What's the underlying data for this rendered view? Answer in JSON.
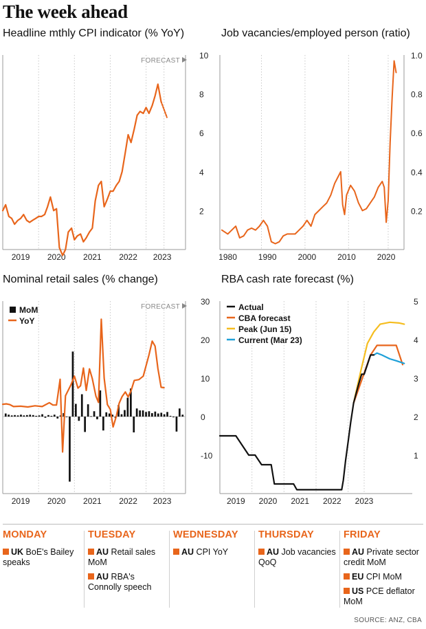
{
  "header": {
    "title": "The week ahead"
  },
  "colors": {
    "orange": "#e8651b",
    "black": "#111111",
    "yellow": "#f5bd1f",
    "blue": "#1fa0d8",
    "grid": "#c8c8c8"
  },
  "chart_data": [
    {
      "type": "line",
      "title": "Headline mthly CPI indicator (% YoY)",
      "annotation": "FORECAST",
      "x_ticks": [
        "2019",
        "2020",
        "2021",
        "2022",
        "2023"
      ],
      "y_ticks": [
        "2",
        "4",
        "6",
        "8",
        "10"
      ],
      "ylim": [
        0,
        10
      ],
      "xlim": [
        2018.5,
        2023.6
      ],
      "series": [
        {
          "points": [
            [
              2018.5,
              2.0
            ],
            [
              2018.58,
              2.3
            ],
            [
              2018.67,
              1.7
            ],
            [
              2018.75,
              1.6
            ],
            [
              2018.83,
              1.3
            ],
            [
              2018.92,
              1.5
            ],
            [
              2019.0,
              1.6
            ],
            [
              2019.08,
              1.8
            ],
            [
              2019.17,
              1.5
            ],
            [
              2019.25,
              1.4
            ],
            [
              2019.33,
              1.5
            ],
            [
              2019.42,
              1.6
            ],
            [
              2019.5,
              1.7
            ],
            [
              2019.58,
              1.7
            ],
            [
              2019.67,
              1.8
            ],
            [
              2019.75,
              2.2
            ],
            [
              2019.83,
              2.7
            ],
            [
              2019.92,
              2.0
            ],
            [
              2020.0,
              2.1
            ],
            [
              2020.08,
              0.1
            ],
            [
              2020.17,
              -0.3
            ],
            [
              2020.25,
              0.0
            ],
            [
              2020.33,
              0.9
            ],
            [
              2020.42,
              1.1
            ],
            [
              2020.5,
              0.5
            ],
            [
              2020.58,
              0.7
            ],
            [
              2020.67,
              0.8
            ],
            [
              2020.75,
              0.4
            ],
            [
              2020.83,
              0.6
            ],
            [
              2020.92,
              0.9
            ],
            [
              2021.0,
              1.1
            ],
            [
              2021.08,
              2.5
            ],
            [
              2021.17,
              3.3
            ],
            [
              2021.25,
              3.5
            ],
            [
              2021.33,
              2.2
            ],
            [
              2021.42,
              2.6
            ],
            [
              2021.5,
              3.0
            ],
            [
              2021.58,
              3.0
            ],
            [
              2021.67,
              3.3
            ],
            [
              2021.75,
              3.5
            ],
            [
              2021.83,
              4.0
            ],
            [
              2021.92,
              5.0
            ],
            [
              2022.0,
              5.9
            ],
            [
              2022.08,
              5.5
            ],
            [
              2022.17,
              6.2
            ],
            [
              2022.25,
              6.9
            ],
            [
              2022.33,
              7.1
            ],
            [
              2022.42,
              7.0
            ],
            [
              2022.5,
              7.3
            ],
            [
              2022.58,
              7.0
            ],
            [
              2022.67,
              7.4
            ],
            [
              2022.75,
              7.9
            ],
            [
              2022.83,
              8.5
            ],
            [
              2022.92,
              7.6
            ]
          ]
        },
        {
          "style": "dashed",
          "points": [
            [
              2022.92,
              7.6
            ],
            [
              2023.0,
              7.2
            ],
            [
              2023.08,
              6.8
            ]
          ]
        }
      ]
    },
    {
      "type": "line",
      "title": "Job vacancies/employed person (ratio)",
      "x_ticks": [
        "1980",
        "1990",
        "2000",
        "2010",
        "2020"
      ],
      "y_ticks": [
        "0.2",
        "0.4",
        "0.6",
        "0.8",
        "1.0"
      ],
      "ylim": [
        0,
        1.0
      ],
      "xlim": [
        1978,
        2024
      ],
      "series": [
        {
          "points": [
            [
              1978.5,
              0.1
            ],
            [
              1980,
              0.08
            ],
            [
              1981,
              0.1
            ],
            [
              1982,
              0.12
            ],
            [
              1983,
              0.06
            ],
            [
              1984,
              0.07
            ],
            [
              1985,
              0.1
            ],
            [
              1986,
              0.11
            ],
            [
              1987,
              0.1
            ],
            [
              1988,
              0.12
            ],
            [
              1989,
              0.15
            ],
            [
              1990,
              0.12
            ],
            [
              1991,
              0.04
            ],
            [
              1992,
              0.03
            ],
            [
              1993,
              0.04
            ],
            [
              1994,
              0.07
            ],
            [
              1995,
              0.08
            ],
            [
              1996,
              0.08
            ],
            [
              1997,
              0.08
            ],
            [
              1998,
              0.1
            ],
            [
              1999,
              0.12
            ],
            [
              2000,
              0.15
            ],
            [
              2001,
              0.12
            ],
            [
              2002,
              0.18
            ],
            [
              2003,
              0.2
            ],
            [
              2004,
              0.22
            ],
            [
              2005,
              0.24
            ],
            [
              2006,
              0.28
            ],
            [
              2007,
              0.34
            ],
            [
              2008,
              0.38
            ],
            [
              2008.5,
              0.4
            ],
            [
              2009,
              0.23
            ],
            [
              2009.5,
              0.18
            ],
            [
              2010,
              0.28
            ],
            [
              2011,
              0.33
            ],
            [
              2012,
              0.3
            ],
            [
              2013,
              0.24
            ],
            [
              2014,
              0.2
            ],
            [
              2015,
              0.21
            ],
            [
              2016,
              0.24
            ],
            [
              2017,
              0.27
            ],
            [
              2018,
              0.32
            ],
            [
              2019,
              0.35
            ],
            [
              2019.5,
              0.32
            ],
            [
              2020,
              0.14
            ],
            [
              2020.5,
              0.25
            ],
            [
              2021,
              0.55
            ],
            [
              2021.5,
              0.78
            ],
            [
              2022,
              0.97
            ],
            [
              2022.5,
              0.91
            ]
          ]
        }
      ]
    },
    {
      "type": "bar+line",
      "title": "Nominal retail sales (% change)",
      "annotation": "FORECAST",
      "x_ticks": [
        "2019",
        "2020",
        "2021",
        "2022",
        "2023"
      ],
      "y_ticks": [
        "-10",
        "0",
        "10",
        "20",
        "30"
      ],
      "ylim": [
        -20,
        30
      ],
      "legend": [
        "MoM",
        "YoY"
      ],
      "series": [
        {
          "name": "MoM",
          "kind": "bar",
          "values": [
            0.8,
            0.5,
            0.3,
            0.4,
            0.3,
            0.5,
            0.3,
            0.4,
            0.5,
            0.4,
            0.2,
            0.3,
            0.6,
            -0.3,
            0.4,
            0.2,
            0.5,
            -0.5,
            0.3,
            0.9,
            -0.1,
            -16.9,
            16.9,
            3.3,
            -1.1,
            5.8,
            -4.0,
            3.2,
            0.1,
            1.4,
            -0.7,
            6.8,
            -3.6,
            1.1,
            0.8,
            0.5,
            -0.4,
            3.0,
            0.6,
            1.7,
            4.9,
            7.3,
            -4.1,
            2.1,
            1.6,
            1.6,
            1.2,
            1.4,
            0.9,
            1.3,
            0.8,
            1.0,
            0.6,
            1.2,
            0.2,
            -0.2,
            -3.9,
            2.1,
            0.5
          ]
        },
        {
          "name": "YoY",
          "kind": "line",
          "points": [
            [
              2018.5,
              3.2
            ],
            [
              2018.6,
              3.3
            ],
            [
              2018.7,
              3.1
            ],
            [
              2018.8,
              2.6
            ],
            [
              2019.0,
              2.7
            ],
            [
              2019.2,
              2.5
            ],
            [
              2019.4,
              2.8
            ],
            [
              2019.6,
              2.6
            ],
            [
              2019.8,
              3.6
            ],
            [
              2019.9,
              3.0
            ],
            [
              2020.0,
              3.0
            ],
            [
              2020.1,
              9.7
            ],
            [
              2020.17,
              -9.2
            ],
            [
              2020.25,
              5.4
            ],
            [
              2020.4,
              8.2
            ],
            [
              2020.5,
              10.5
            ],
            [
              2020.6,
              7.4
            ],
            [
              2020.67,
              8.0
            ],
            [
              2020.75,
              12.6
            ],
            [
              2020.83,
              6.8
            ],
            [
              2020.92,
              12.4
            ],
            [
              2021.0,
              9.8
            ],
            [
              2021.1,
              5.3
            ],
            [
              2021.17,
              3.7
            ],
            [
              2021.25,
              25.3
            ],
            [
              2021.33,
              10.0
            ],
            [
              2021.42,
              3.1
            ],
            [
              2021.5,
              1.9
            ],
            [
              2021.58,
              -2.7
            ],
            [
              2021.67,
              0.1
            ],
            [
              2021.75,
              3.5
            ],
            [
              2021.83,
              5.2
            ],
            [
              2021.92,
              6.4
            ],
            [
              2022.0,
              5.1
            ],
            [
              2022.08,
              6.7
            ],
            [
              2022.17,
              9.4
            ],
            [
              2022.3,
              9.6
            ],
            [
              2022.42,
              10.5
            ],
            [
              2022.58,
              16.0
            ],
            [
              2022.67,
              19.6
            ],
            [
              2022.75,
              18.3
            ],
            [
              2022.83,
              12.5
            ],
            [
              2022.92,
              7.6
            ],
            [
              2023.0,
              7.5
            ]
          ]
        }
      ]
    },
    {
      "type": "line",
      "title": "RBA cash rate forecast (%)",
      "x_ticks": [
        "2019",
        "2020",
        "2021",
        "2022",
        "2023"
      ],
      "y_ticks": [
        "1",
        "2",
        "3",
        "4",
        "5"
      ],
      "ylim": [
        0,
        5
      ],
      "legend": [
        "Actual",
        "CBA forecast",
        "Peak (Jun 15)",
        "Current (Mar 23)"
      ],
      "series": [
        {
          "name": "Actual",
          "points": [
            [
              2018.5,
              1.5
            ],
            [
              2019.0,
              1.5
            ],
            [
              2019.4,
              1.0
            ],
            [
              2019.6,
              1.0
            ],
            [
              2019.8,
              0.75
            ],
            [
              2020.1,
              0.75
            ],
            [
              2020.2,
              0.25
            ],
            [
              2020.8,
              0.25
            ],
            [
              2020.9,
              0.1
            ],
            [
              2022.3,
              0.1
            ],
            [
              2022.35,
              0.35
            ],
            [
              2022.42,
              0.85
            ],
            [
              2022.5,
              1.35
            ],
            [
              2022.58,
              1.85
            ],
            [
              2022.67,
              2.35
            ],
            [
              2022.75,
              2.6
            ],
            [
              2022.83,
              2.85
            ],
            [
              2022.92,
              3.1
            ],
            [
              2023.0,
              3.1
            ],
            [
              2023.1,
              3.35
            ],
            [
              2023.2,
              3.6
            ],
            [
              2023.3,
              3.6
            ]
          ]
        },
        {
          "name": "CBA forecast",
          "points": [
            [
              2022.67,
              2.35
            ],
            [
              2023.2,
              3.6
            ],
            [
              2023.4,
              3.85
            ],
            [
              2023.6,
              3.85
            ],
            [
              2024.0,
              3.85
            ],
            [
              2024.2,
              3.35
            ]
          ]
        },
        {
          "name": "Peak (Jun 15)",
          "points": [
            [
              2022.67,
              2.35
            ],
            [
              2022.9,
              3.2
            ],
            [
              2023.1,
              3.9
            ],
            [
              2023.3,
              4.2
            ],
            [
              2023.5,
              4.4
            ],
            [
              2023.8,
              4.45
            ],
            [
              2024.1,
              4.43
            ],
            [
              2024.25,
              4.4
            ]
          ]
        },
        {
          "name": "Current (Mar 23)",
          "points": [
            [
              2023.3,
              3.6
            ],
            [
              2023.4,
              3.65
            ],
            [
              2023.55,
              3.6
            ],
            [
              2023.8,
              3.5
            ],
            [
              2024.0,
              3.45
            ],
            [
              2024.25,
              3.38
            ]
          ]
        }
      ]
    }
  ],
  "week": [
    {
      "day": "Monday",
      "items": [
        {
          "region": "UK",
          "text": "BoE's Bailey speaks"
        }
      ]
    },
    {
      "day": "Tuesday",
      "items": [
        {
          "region": "AU",
          "text": "Retail sales MoM"
        },
        {
          "region": "AU",
          "text": "RBA's Connolly speech"
        }
      ]
    },
    {
      "day": "Wednesday",
      "items": [
        {
          "region": "AU",
          "text": "CPI YoY"
        }
      ]
    },
    {
      "day": "Thursday",
      "items": [
        {
          "region": "AU",
          "text": "Job vacancies QoQ"
        }
      ]
    },
    {
      "day": "Friday",
      "items": [
        {
          "region": "AU",
          "text": "Private sector credit MoM"
        },
        {
          "region": "EU",
          "text": "CPI MoM"
        },
        {
          "region": "US",
          "text": "PCE deflator MoM"
        }
      ]
    }
  ],
  "source": "SOURCE: ANZ, CBA"
}
